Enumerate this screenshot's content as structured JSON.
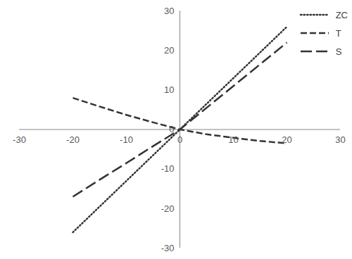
{
  "chart_data": {
    "type": "line",
    "x": [
      -20,
      -15,
      -10,
      -5,
      0,
      5,
      10,
      15,
      20
    ],
    "series": [
      {
        "name": "ZC",
        "color": "#333333",
        "line_style": "dotted",
        "values": [
          -26,
          -19.5,
          -13,
          -6.5,
          0,
          6.5,
          13,
          19.5,
          26
        ]
      },
      {
        "name": "T",
        "color": "#333333",
        "line_style": "dashed",
        "values": [
          8,
          5.8,
          3.7,
          1.8,
          0,
          -1.2,
          -2.1,
          -2.9,
          -3.5
        ]
      },
      {
        "name": "S",
        "color": "#333333",
        "line_style": "long-dash",
        "values": [
          -17,
          -12.7,
          -8.5,
          -4.2,
          0,
          5.5,
          11,
          16.5,
          22
        ]
      }
    ],
    "xlim": [
      -30,
      30
    ],
    "ylim": [
      -30,
      30
    ],
    "xticks": [
      -30,
      -20,
      -10,
      0,
      10,
      20,
      30
    ],
    "yticks": [
      -30,
      -20,
      -10,
      0,
      10,
      20,
      30
    ],
    "grid": false,
    "legend": "upper right"
  }
}
